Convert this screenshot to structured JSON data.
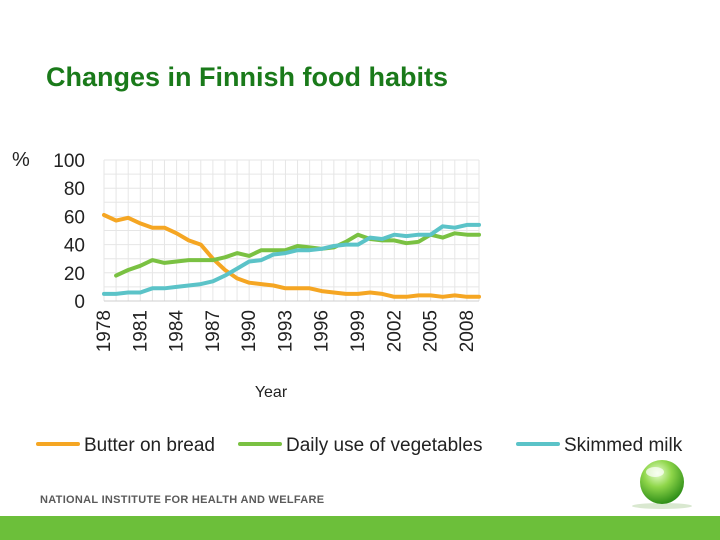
{
  "slide": {
    "title": "Changes in Finnish food habits",
    "footer_org": "NATIONAL INSTITUTE FOR HEALTH AND WELFARE",
    "bar_color": "#6cbf3a",
    "title_color": "#1a7a1a"
  },
  "chart_data": {
    "type": "line",
    "title": "Changes in Finnish food habits",
    "xlabel": "Year",
    "ylabel": "%",
    "xlim": [
      1978,
      2009
    ],
    "ylim": [
      0,
      100
    ],
    "y_ticks": [
      0,
      20,
      40,
      60,
      80,
      100
    ],
    "x_ticks": [
      1978,
      1981,
      1984,
      1987,
      1990,
      1993,
      1996,
      1999,
      2002,
      2005,
      2008
    ],
    "grid": true,
    "legend_position": "bottom",
    "series": [
      {
        "name": "Butter on bread",
        "color": "#f5a623",
        "x": [
          1978,
          1979,
          1980,
          1981,
          1982,
          1983,
          1984,
          1985,
          1986,
          1987,
          1988,
          1989,
          1990,
          1991,
          1992,
          1993,
          1994,
          1995,
          1996,
          1997,
          1998,
          1999,
          2000,
          2001,
          2002,
          2003,
          2004,
          2005,
          2006,
          2007,
          2008,
          2009
        ],
        "y": [
          61,
          57,
          59,
          55,
          52,
          52,
          48,
          43,
          40,
          30,
          22,
          16,
          13,
          12,
          11,
          9,
          9,
          9,
          7,
          6,
          5,
          5,
          6,
          5,
          3,
          3,
          4,
          4,
          3,
          4,
          3,
          3
        ]
      },
      {
        "name": "Daily use of vegetables",
        "color": "#7ac142",
        "x": [
          1979,
          1980,
          1981,
          1982,
          1983,
          1984,
          1985,
          1986,
          1987,
          1988,
          1989,
          1990,
          1991,
          1992,
          1993,
          1994,
          1995,
          1996,
          1997,
          1998,
          1999,
          2000,
          2001,
          2002,
          2003,
          2004,
          2005,
          2006,
          2007,
          2008,
          2009
        ],
        "y": [
          18,
          22,
          25,
          29,
          27,
          28,
          29,
          29,
          29,
          31,
          34,
          32,
          36,
          36,
          36,
          39,
          38,
          37,
          38,
          42,
          47,
          44,
          43,
          43,
          41,
          42,
          47,
          45,
          48,
          47,
          47
        ]
      },
      {
        "name": "Skimmed milk",
        "color": "#5bc3c8",
        "x": [
          1978,
          1979,
          1980,
          1981,
          1982,
          1983,
          1984,
          1985,
          1986,
          1987,
          1988,
          1989,
          1990,
          1991,
          1992,
          1993,
          1994,
          1995,
          1996,
          1997,
          1998,
          1999,
          2000,
          2001,
          2002,
          2003,
          2004,
          2005,
          2006,
          2007,
          2008,
          2009
        ],
        "y": [
          5,
          5,
          6,
          6,
          9,
          9,
          10,
          11,
          12,
          14,
          18,
          23,
          28,
          29,
          33,
          34,
          36,
          36,
          37,
          39,
          40,
          40,
          45,
          44,
          47,
          46,
          47,
          47,
          53,
          52,
          54,
          54
        ]
      }
    ]
  }
}
